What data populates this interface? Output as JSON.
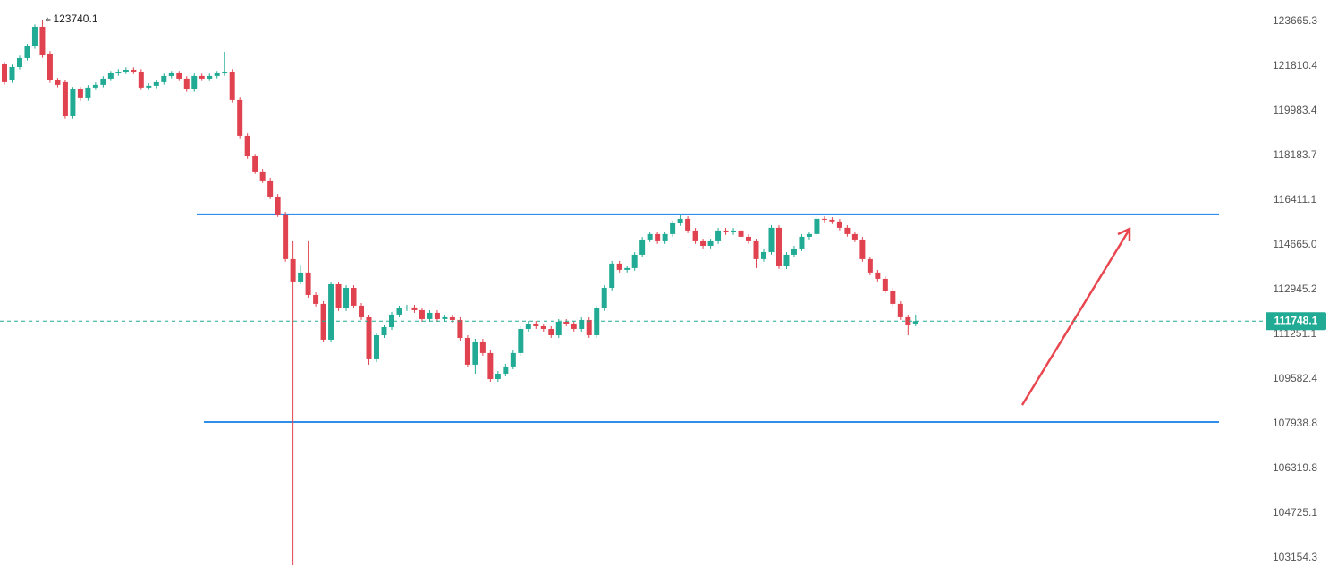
{
  "chart_data": {
    "type": "candlestick",
    "log_scale": true,
    "up_color": "#22ab94",
    "down_color": "#e0434f",
    "level_color": "#2f8fe8",
    "ylim": [
      102905,
      124566
    ],
    "yticks": [
      123665.3,
      121810.4,
      119983.4,
      118183.7,
      116411.1,
      {
        "value": 114665.0,
        "label": "114665.0"
      },
      112945.2,
      111251.1,
      109582.4,
      107938.8,
      106319.8,
      104725.1,
      103154.3
    ],
    "open": [
      121884,
      121226,
      121774,
      122144,
      122627,
      123443,
      122329,
      121226,
      121153,
      119767,
      120861,
      120496,
      120934,
      121044,
      121299,
      121518,
      121591,
      121664,
      121591,
      120934,
      121007,
      121153,
      121409,
      121518,
      121299,
      120861,
      121409,
      121299,
      121409,
      121518,
      121591,
      120423,
      118975,
      118148,
      117546,
      117191,
      116553,
      115853,
      114115,
      113255,
      113599,
      112742,
      112403,
      111051,
      113152,
      112233,
      113014,
      112335,
      111894,
      110316,
      111218,
      111521,
      111996,
      112233,
      112267,
      112165,
      111826,
      112064,
      111826,
      111894,
      111792,
      111117,
      110116,
      110984,
      110550,
      109582,
      109782,
      110049,
      110550,
      111454,
      111657,
      111555,
      111454,
      111218,
      111725,
      111657,
      111454,
      111792,
      111218,
      112233,
      113014,
      113943,
      113702,
      113771,
      114287,
      114875,
      115085,
      114806,
      115085,
      115504,
      115678,
      115224,
      114806,
      114631,
      114806,
      115224,
      115155,
      115224,
      114980,
      114806,
      114115,
      114390,
      115329,
      113839,
      114287,
      114527,
      114980,
      115085,
      115678,
      115643,
      115574,
      115329,
      115085,
      114875,
      114115,
      113599,
      113358,
      112911,
      112403,
      111894,
      111657
    ],
    "high": [
      121984,
      121874,
      122244,
      122727,
      123543,
      123740.1,
      122429,
      121326,
      121253,
      120961,
      120961,
      121034,
      121144,
      121399,
      121618,
      121691,
      121764,
      121764,
      121691,
      121107,
      121253,
      121509,
      121618,
      121618,
      121399,
      121509,
      121509,
      121509,
      121618,
      122404,
      121691,
      120523,
      119075,
      118248,
      117646,
      117291,
      116653,
      115953,
      114806,
      113899,
      114806,
      112842,
      112503,
      113252,
      113252,
      113114,
      113114,
      112435,
      111994,
      111318,
      111621,
      112096,
      112333,
      112367,
      112367,
      112265,
      112164,
      112164,
      111994,
      111994,
      111892,
      111217,
      111084,
      111084,
      110650,
      109882,
      110149,
      110650,
      111554,
      111757,
      111757,
      111655,
      111554,
      111825,
      111825,
      111757,
      111892,
      111892,
      112333,
      113114,
      114043,
      114043,
      113871,
      114387,
      114975,
      115185,
      115185,
      115185,
      115604,
      115853,
      115778,
      115324,
      114906,
      114906,
      115324,
      115324,
      115324,
      115324,
      115080,
      114906,
      114490,
      115429,
      115429,
      114387,
      114627,
      115080,
      115185,
      115853,
      115778,
      115743,
      115674,
      115429,
      115185,
      114975,
      114215,
      113699,
      113458,
      113011,
      112503,
      111994,
      111996
    ],
    "low": [
      121053,
      121126,
      121674,
      122044,
      122527,
      122156,
      121126,
      120944,
      119667,
      119667,
      120396,
      120396,
      120834,
      120944,
      121199,
      121418,
      121491,
      121491,
      120834,
      120834,
      120907,
      121053,
      121309,
      121199,
      120761,
      120761,
      121199,
      121199,
      121309,
      121418,
      120323,
      118875,
      118048,
      117446,
      117091,
      116453,
      115753,
      114015,
      102905,
      113155,
      112642,
      112303,
      110951,
      110951,
      112133,
      112133,
      112235,
      111794,
      110116,
      110216,
      111118,
      111421,
      111896,
      112133,
      112065,
      111726,
      111726,
      111726,
      111726,
      111692,
      111017,
      110016,
      109782,
      110450,
      109482,
      109482,
      109682,
      109949,
      110450,
      111354,
      111455,
      111354,
      111118,
      111118,
      111557,
      111354,
      111354,
      111118,
      111118,
      112133,
      112914,
      113602,
      113602,
      113671,
      114187,
      114775,
      114706,
      114706,
      114985,
      115404,
      115124,
      114706,
      114531,
      114531,
      114706,
      115055,
      115055,
      114880,
      114706,
      113771,
      114015,
      114290,
      113739,
      113739,
      114187,
      114427,
      114880,
      114985,
      115543,
      115474,
      115229,
      114985,
      114775,
      114015,
      113499,
      113258,
      112811,
      112303,
      111794,
      111218,
      111557
    ],
    "close": [
      121153,
      121774,
      122144,
      122627,
      123443,
      122256,
      121226,
      121044,
      119767,
      120861,
      120496,
      120934,
      121044,
      121299,
      121518,
      121591,
      121664,
      121591,
      120934,
      121007,
      121153,
      121409,
      121518,
      121299,
      120861,
      121409,
      121299,
      121409,
      121518,
      121591,
      120423,
      118975,
      118148,
      117546,
      117191,
      116553,
      115853,
      114115,
      113255,
      113599,
      112742,
      112403,
      111051,
      113152,
      112233,
      113014,
      112335,
      111894,
      110316,
      111218,
      111521,
      111996,
      112233,
      112267,
      112165,
      111826,
      112064,
      111826,
      111894,
      111792,
      111117,
      110116,
      110984,
      110550,
      109582,
      109782,
      110049,
      110550,
      111454,
      111657,
      111555,
      111454,
      111218,
      111725,
      111657,
      111454,
      111792,
      111218,
      112233,
      113014,
      113943,
      113702,
      113771,
      114287,
      114875,
      115085,
      114806,
      115085,
      115504,
      115678,
      115224,
      114806,
      114631,
      114806,
      115224,
      115155,
      115224,
      114980,
      114806,
      114115,
      114390,
      115329,
      113839,
      114287,
      114527,
      114980,
      115085,
      115678,
      115643,
      115574,
      115329,
      115085,
      114875,
      114115,
      113599,
      113358,
      112911,
      112403,
      111894,
      111623,
      111748.1
    ],
    "levels": [
      115853,
      108004
    ],
    "last_price": 111748.1
  }
}
